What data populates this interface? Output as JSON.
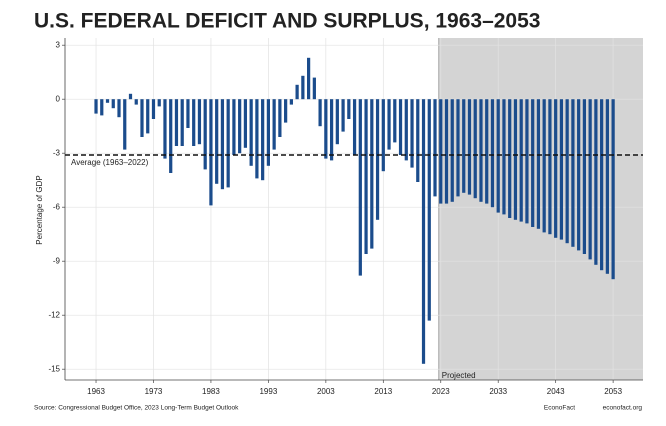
{
  "chart_data": {
    "type": "bar",
    "title": "U.S. FEDERAL DEFICIT AND SURPLUS, 1963–2053",
    "y_label": "Percentage of GDP",
    "source": "Source: Congressional Budget Office, 2023 Long-Term Budget Outlook",
    "credits": [
      "EconoFact",
      "econofact.org"
    ],
    "x": [
      1963,
      1964,
      1965,
      1966,
      1967,
      1968,
      1969,
      1970,
      1971,
      1972,
      1973,
      1974,
      1975,
      1976,
      1977,
      1978,
      1979,
      1980,
      1981,
      1982,
      1983,
      1984,
      1985,
      1986,
      1987,
      1988,
      1989,
      1990,
      1991,
      1992,
      1993,
      1994,
      1995,
      1996,
      1997,
      1998,
      1999,
      2000,
      2001,
      2002,
      2003,
      2004,
      2005,
      2006,
      2007,
      2008,
      2009,
      2010,
      2011,
      2012,
      2013,
      2014,
      2015,
      2016,
      2017,
      2018,
      2019,
      2020,
      2021,
      2022,
      2023,
      2024,
      2025,
      2026,
      2027,
      2028,
      2029,
      2030,
      2031,
      2032,
      2033,
      2034,
      2035,
      2036,
      2037,
      2038,
      2039,
      2040,
      2041,
      2042,
      2043,
      2044,
      2045,
      2046,
      2047,
      2048,
      2049,
      2050,
      2051,
      2052,
      2053
    ],
    "series": [
      {
        "color": "#1b4c8c",
        "values": [
          -0.8,
          -0.9,
          -0.2,
          -0.5,
          -1.0,
          -2.8,
          0.3,
          -0.3,
          -2.1,
          -1.9,
          -1.1,
          -0.4,
          -3.3,
          -4.1,
          -2.6,
          -2.6,
          -1.6,
          -2.6,
          -2.5,
          -3.9,
          -5.9,
          -4.7,
          -5.0,
          -4.9,
          -3.1,
          -3.0,
          -2.7,
          -3.7,
          -4.4,
          -4.5,
          -3.7,
          -2.8,
          -2.1,
          -1.3,
          -0.3,
          0.8,
          1.3,
          2.3,
          1.2,
          -1.5,
          -3.3,
          -3.4,
          -2.5,
          -1.8,
          -1.1,
          -3.1,
          -9.8,
          -8.6,
          -8.3,
          -6.7,
          -4.0,
          -2.8,
          -2.4,
          -3.1,
          -3.4,
          -3.8,
          -4.6,
          -14.7,
          -12.3,
          -5.4,
          -5.8,
          -5.8,
          -5.7,
          -5.4,
          -5.2,
          -5.3,
          -5.5,
          -5.7,
          -5.8,
          -6.0,
          -6.3,
          -6.4,
          -6.6,
          -6.7,
          -6.8,
          -6.9,
          -7.1,
          -7.2,
          -7.4,
          -7.5,
          -7.7,
          -7.8,
          -8.0,
          -8.2,
          -8.4,
          -8.6,
          -8.9,
          -9.2,
          -9.5,
          -9.7,
          -10.0
        ]
      }
    ],
    "xlim": [
      1957.6,
      2058.2
    ],
    "xticks": [
      1963,
      1973,
      1983,
      1993,
      2003,
      2013,
      2023,
      2033,
      2043,
      2053
    ],
    "ylim": [
      -15.6,
      3.4
    ],
    "yticks": [
      3,
      0,
      -3,
      -6,
      -9,
      -12,
      -15
    ],
    "grid": true,
    "average": {
      "value": -3.1,
      "label": "Average (1963–2022)"
    },
    "projection": {
      "start": 2023,
      "label": "Projected",
      "color": "#d4d4d4"
    }
  }
}
